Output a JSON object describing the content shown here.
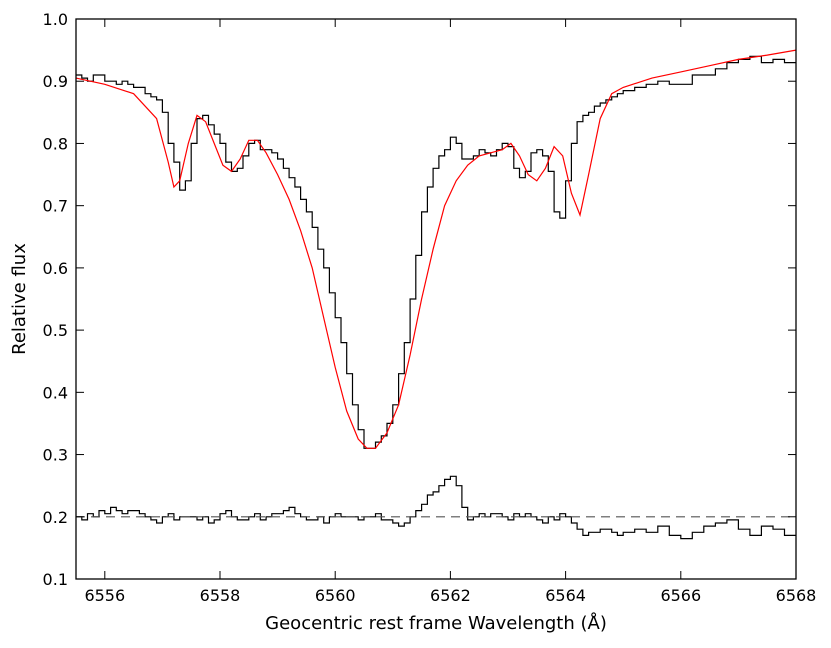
{
  "chart_data": {
    "type": "line",
    "title": "",
    "xlabel": "Geocentric rest frame Wavelength (Å)",
    "ylabel": "Relative flux",
    "xlim": [
      6555.5,
      6568
    ],
    "ylim": [
      0.1,
      1.0
    ],
    "x_ticks": [
      6556,
      6558,
      6560,
      6562,
      6564,
      6566,
      6568
    ],
    "y_ticks": [
      0.1,
      0.2,
      0.3,
      0.4,
      0.5,
      0.6,
      0.7,
      0.8,
      0.9,
      1.0
    ],
    "x_tick_labels": [
      "6556",
      "6558",
      "6560",
      "6562",
      "6564",
      "6566",
      "6568"
    ],
    "y_tick_labels": [
      "0.1",
      "0.2",
      "0.3",
      "0.4",
      "0.5",
      "0.6",
      "0.7",
      "0.8",
      "0.9",
      "1.0"
    ],
    "grid": false,
    "series": [
      {
        "style": "step",
        "color": "#000000",
        "x": [
          6555.5,
          6555.6,
          6555.7,
          6555.8,
          6555.9,
          6556.0,
          6556.1,
          6556.2,
          6556.3,
          6556.4,
          6556.5,
          6556.6,
          6556.7,
          6556.8,
          6556.9,
          6557.0,
          6557.1,
          6557.2,
          6557.3,
          6557.4,
          6557.5,
          6557.6,
          6557.7,
          6557.8,
          6557.9,
          6558.0,
          6558.1,
          6558.2,
          6558.3,
          6558.4,
          6558.5,
          6558.6,
          6558.7,
          6558.8,
          6558.9,
          6559.0,
          6559.1,
          6559.2,
          6559.3,
          6559.4,
          6559.5,
          6559.6,
          6559.7,
          6559.8,
          6559.9,
          6560.0,
          6560.1,
          6560.2,
          6560.3,
          6560.4,
          6560.5,
          6560.6,
          6560.7,
          6560.8,
          6560.9,
          6561.0,
          6561.1,
          6561.2,
          6561.3,
          6561.4,
          6561.5,
          6561.6,
          6561.7,
          6561.8,
          6561.9,
          6562.0,
          6562.1,
          6562.2,
          6562.3,
          6562.4,
          6562.5,
          6562.6,
          6562.7,
          6562.8,
          6562.9,
          6563.0,
          6563.1,
          6563.2,
          6563.3,
          6563.4,
          6563.5,
          6563.6,
          6563.7,
          6563.8,
          6563.9,
          6564.0,
          6564.1,
          6564.2,
          6564.3,
          6564.4,
          6564.5,
          6564.6,
          6564.7,
          6564.8,
          6564.9,
          6565.0,
          6565.2,
          6565.4,
          6565.6,
          6565.8,
          6566.0,
          6566.2,
          6566.4,
          6566.6,
          6566.8,
          6567.0,
          6567.2,
          6567.4,
          6567.6,
          6567.8
        ],
        "y": [
          0.91,
          0.905,
          0.9,
          0.91,
          0.91,
          0.9,
          0.9,
          0.895,
          0.9,
          0.895,
          0.89,
          0.89,
          0.88,
          0.875,
          0.87,
          0.85,
          0.8,
          0.77,
          0.725,
          0.74,
          0.8,
          0.84,
          0.845,
          0.83,
          0.815,
          0.8,
          0.77,
          0.755,
          0.76,
          0.78,
          0.8,
          0.805,
          0.79,
          0.79,
          0.785,
          0.775,
          0.76,
          0.745,
          0.73,
          0.71,
          0.69,
          0.665,
          0.63,
          0.6,
          0.56,
          0.52,
          0.48,
          0.43,
          0.38,
          0.34,
          0.31,
          0.31,
          0.32,
          0.33,
          0.35,
          0.38,
          0.43,
          0.48,
          0.55,
          0.62,
          0.69,
          0.73,
          0.76,
          0.78,
          0.79,
          0.81,
          0.8,
          0.775,
          0.775,
          0.78,
          0.79,
          0.785,
          0.78,
          0.79,
          0.8,
          0.795,
          0.76,
          0.745,
          0.755,
          0.785,
          0.79,
          0.78,
          0.755,
          0.69,
          0.68,
          0.74,
          0.8,
          0.835,
          0.845,
          0.85,
          0.86,
          0.865,
          0.87,
          0.875,
          0.88,
          0.885,
          0.89,
          0.895,
          0.9,
          0.895,
          0.895,
          0.91,
          0.91,
          0.92,
          0.93,
          0.935,
          0.94,
          0.93,
          0.935,
          0.93
        ],
        "x_end": 6568
      },
      {
        "style": "line",
        "color": "#ff0000",
        "x": [
          6555.5,
          6556.0,
          6556.5,
          6556.9,
          6557.1,
          6557.2,
          6557.3,
          6557.45,
          6557.6,
          6557.75,
          6557.9,
          6558.05,
          6558.2,
          6558.35,
          6558.5,
          6558.65,
          6558.8,
          6559.0,
          6559.2,
          6559.4,
          6559.6,
          6559.8,
          6560.0,
          6560.2,
          6560.4,
          6560.55,
          6560.7,
          6560.9,
          6561.1,
          6561.3,
          6561.5,
          6561.7,
          6561.9,
          6562.1,
          6562.3,
          6562.5,
          6562.7,
          6562.9,
          6563.05,
          6563.2,
          6563.35,
          6563.5,
          6563.65,
          6563.8,
          6563.95,
          6564.1,
          6564.25,
          6564.4,
          6564.6,
          6564.8,
          6565.0,
          6565.5,
          6566.0,
          6566.5,
          6567.0,
          6567.5,
          6568.0
        ],
        "y": [
          0.905,
          0.895,
          0.88,
          0.84,
          0.77,
          0.73,
          0.74,
          0.8,
          0.845,
          0.835,
          0.8,
          0.765,
          0.755,
          0.775,
          0.805,
          0.805,
          0.785,
          0.75,
          0.71,
          0.66,
          0.6,
          0.52,
          0.44,
          0.37,
          0.325,
          0.31,
          0.31,
          0.335,
          0.38,
          0.46,
          0.55,
          0.63,
          0.7,
          0.74,
          0.765,
          0.78,
          0.785,
          0.79,
          0.8,
          0.78,
          0.75,
          0.74,
          0.76,
          0.795,
          0.78,
          0.72,
          0.685,
          0.75,
          0.84,
          0.88,
          0.89,
          0.905,
          0.915,
          0.925,
          0.935,
          0.942,
          0.95
        ]
      },
      {
        "style": "step",
        "color": "#000000",
        "x": [
          6555.5,
          6555.6,
          6555.7,
          6555.8,
          6555.9,
          6556.0,
          6556.1,
          6556.2,
          6556.3,
          6556.4,
          6556.5,
          6556.6,
          6556.7,
          6556.8,
          6556.9,
          6557.0,
          6557.1,
          6557.2,
          6557.3,
          6557.4,
          6557.5,
          6557.6,
          6557.7,
          6557.8,
          6557.9,
          6558.0,
          6558.1,
          6558.2,
          6558.3,
          6558.4,
          6558.5,
          6558.6,
          6558.7,
          6558.8,
          6558.9,
          6559.0,
          6559.1,
          6559.2,
          6559.3,
          6559.4,
          6559.5,
          6559.6,
          6559.7,
          6559.8,
          6559.9,
          6560.0,
          6560.1,
          6560.2,
          6560.3,
          6560.4,
          6560.5,
          6560.6,
          6560.7,
          6560.8,
          6560.9,
          6561.0,
          6561.1,
          6561.2,
          6561.3,
          6561.4,
          6561.5,
          6561.6,
          6561.7,
          6561.8,
          6561.9,
          6562.0,
          6562.1,
          6562.2,
          6562.3,
          6562.4,
          6562.5,
          6562.6,
          6562.7,
          6562.8,
          6562.9,
          6563.0,
          6563.1,
          6563.2,
          6563.3,
          6563.4,
          6563.5,
          6563.6,
          6563.7,
          6563.8,
          6563.9,
          6564.0,
          6564.1,
          6564.2,
          6564.3,
          6564.4,
          6564.5,
          6564.6,
          6564.7,
          6564.8,
          6564.9,
          6565.0,
          6565.2,
          6565.4,
          6565.6,
          6565.8,
          6566.0,
          6566.2,
          6566.4,
          6566.6,
          6566.8,
          6567.0,
          6567.2,
          6567.4,
          6567.6,
          6567.8
        ],
        "y": [
          0.2,
          0.195,
          0.205,
          0.2,
          0.21,
          0.205,
          0.215,
          0.21,
          0.205,
          0.21,
          0.21,
          0.205,
          0.2,
          0.195,
          0.19,
          0.2,
          0.205,
          0.195,
          0.2,
          0.2,
          0.2,
          0.195,
          0.2,
          0.19,
          0.195,
          0.205,
          0.21,
          0.2,
          0.195,
          0.195,
          0.2,
          0.205,
          0.195,
          0.2,
          0.205,
          0.205,
          0.21,
          0.215,
          0.205,
          0.2,
          0.195,
          0.195,
          0.2,
          0.19,
          0.2,
          0.205,
          0.2,
          0.2,
          0.2,
          0.195,
          0.2,
          0.2,
          0.205,
          0.195,
          0.195,
          0.19,
          0.185,
          0.19,
          0.2,
          0.21,
          0.22,
          0.235,
          0.24,
          0.25,
          0.26,
          0.265,
          0.25,
          0.215,
          0.195,
          0.2,
          0.205,
          0.2,
          0.205,
          0.205,
          0.2,
          0.195,
          0.205,
          0.2,
          0.205,
          0.2,
          0.195,
          0.19,
          0.2,
          0.195,
          0.205,
          0.2,
          0.19,
          0.18,
          0.17,
          0.175,
          0.175,
          0.18,
          0.18,
          0.175,
          0.17,
          0.175,
          0.18,
          0.175,
          0.185,
          0.17,
          0.165,
          0.175,
          0.185,
          0.19,
          0.195,
          0.18,
          0.17,
          0.185,
          0.18,
          0.17
        ],
        "x_end": 6568
      },
      {
        "style": "dashed",
        "color": "#555555",
        "x": [
          6555.5,
          6568
        ],
        "y": [
          0.2,
          0.2
        ]
      }
    ]
  }
}
